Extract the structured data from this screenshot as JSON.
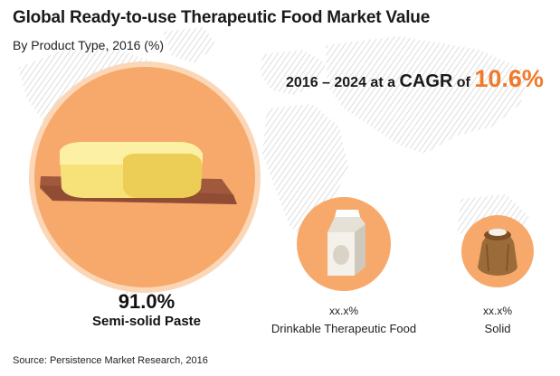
{
  "header": {
    "title": "Global Ready-to-use Therapeutic Food Market Value",
    "subtitle": "By Product Type, 2016 (%)"
  },
  "cagr": {
    "period": "2016 – 2024 at a ",
    "word": "CAGR",
    "of": " of ",
    "value": "10.6%"
  },
  "chart_data": {
    "type": "bubble",
    "title": "Global Ready-to-use Therapeutic Food Market Value",
    "subtitle": "By Product Type, 2016 (%)",
    "categories": [
      "Semi-solid Paste",
      "Drinkable Therapeutic Food",
      "Solid"
    ],
    "values": [
      91.0,
      null,
      null
    ],
    "value_labels": [
      "91.0%",
      "xx.x%",
      "xx.x%"
    ],
    "series": [
      {
        "values": [
          91.0,
          null,
          null
        ]
      }
    ],
    "icons": [
      "butter-block-icon",
      "milk-carton-icon",
      "grain-sack-icon"
    ],
    "colors": {
      "circle_primary": "#f7a96c",
      "circle_light": "#fbd7b8",
      "accent": "#f07a2a"
    },
    "legend": "none",
    "grid": false
  },
  "footer": {
    "source": "Source: Persistence Market Research, 2016"
  }
}
